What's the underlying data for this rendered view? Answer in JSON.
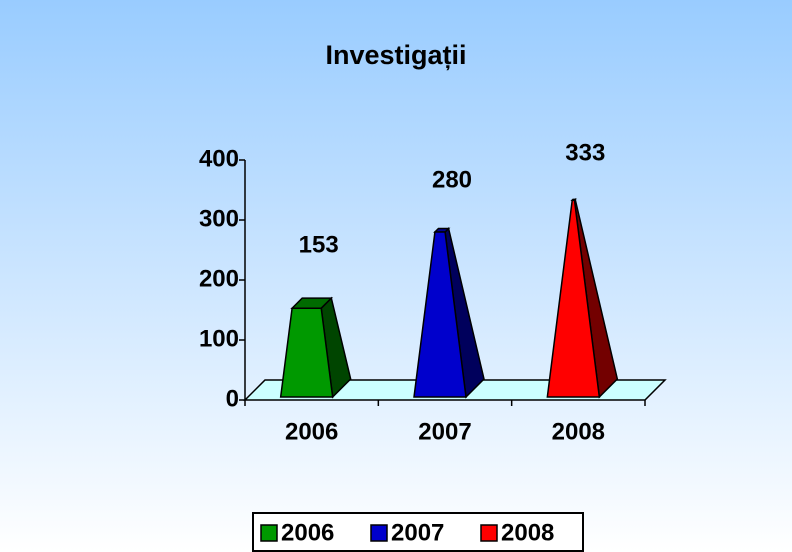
{
  "chart_data": {
    "type": "bar",
    "title": "Investigații",
    "categories": [
      "2006",
      "2007",
      "2008"
    ],
    "values": [
      153,
      280,
      333
    ],
    "colors": [
      "#009900",
      "#0000cc",
      "#ff0000"
    ],
    "ylim": [
      0,
      400
    ],
    "yticks": [
      0,
      100,
      200,
      300,
      400
    ],
    "legend": "bottom"
  }
}
